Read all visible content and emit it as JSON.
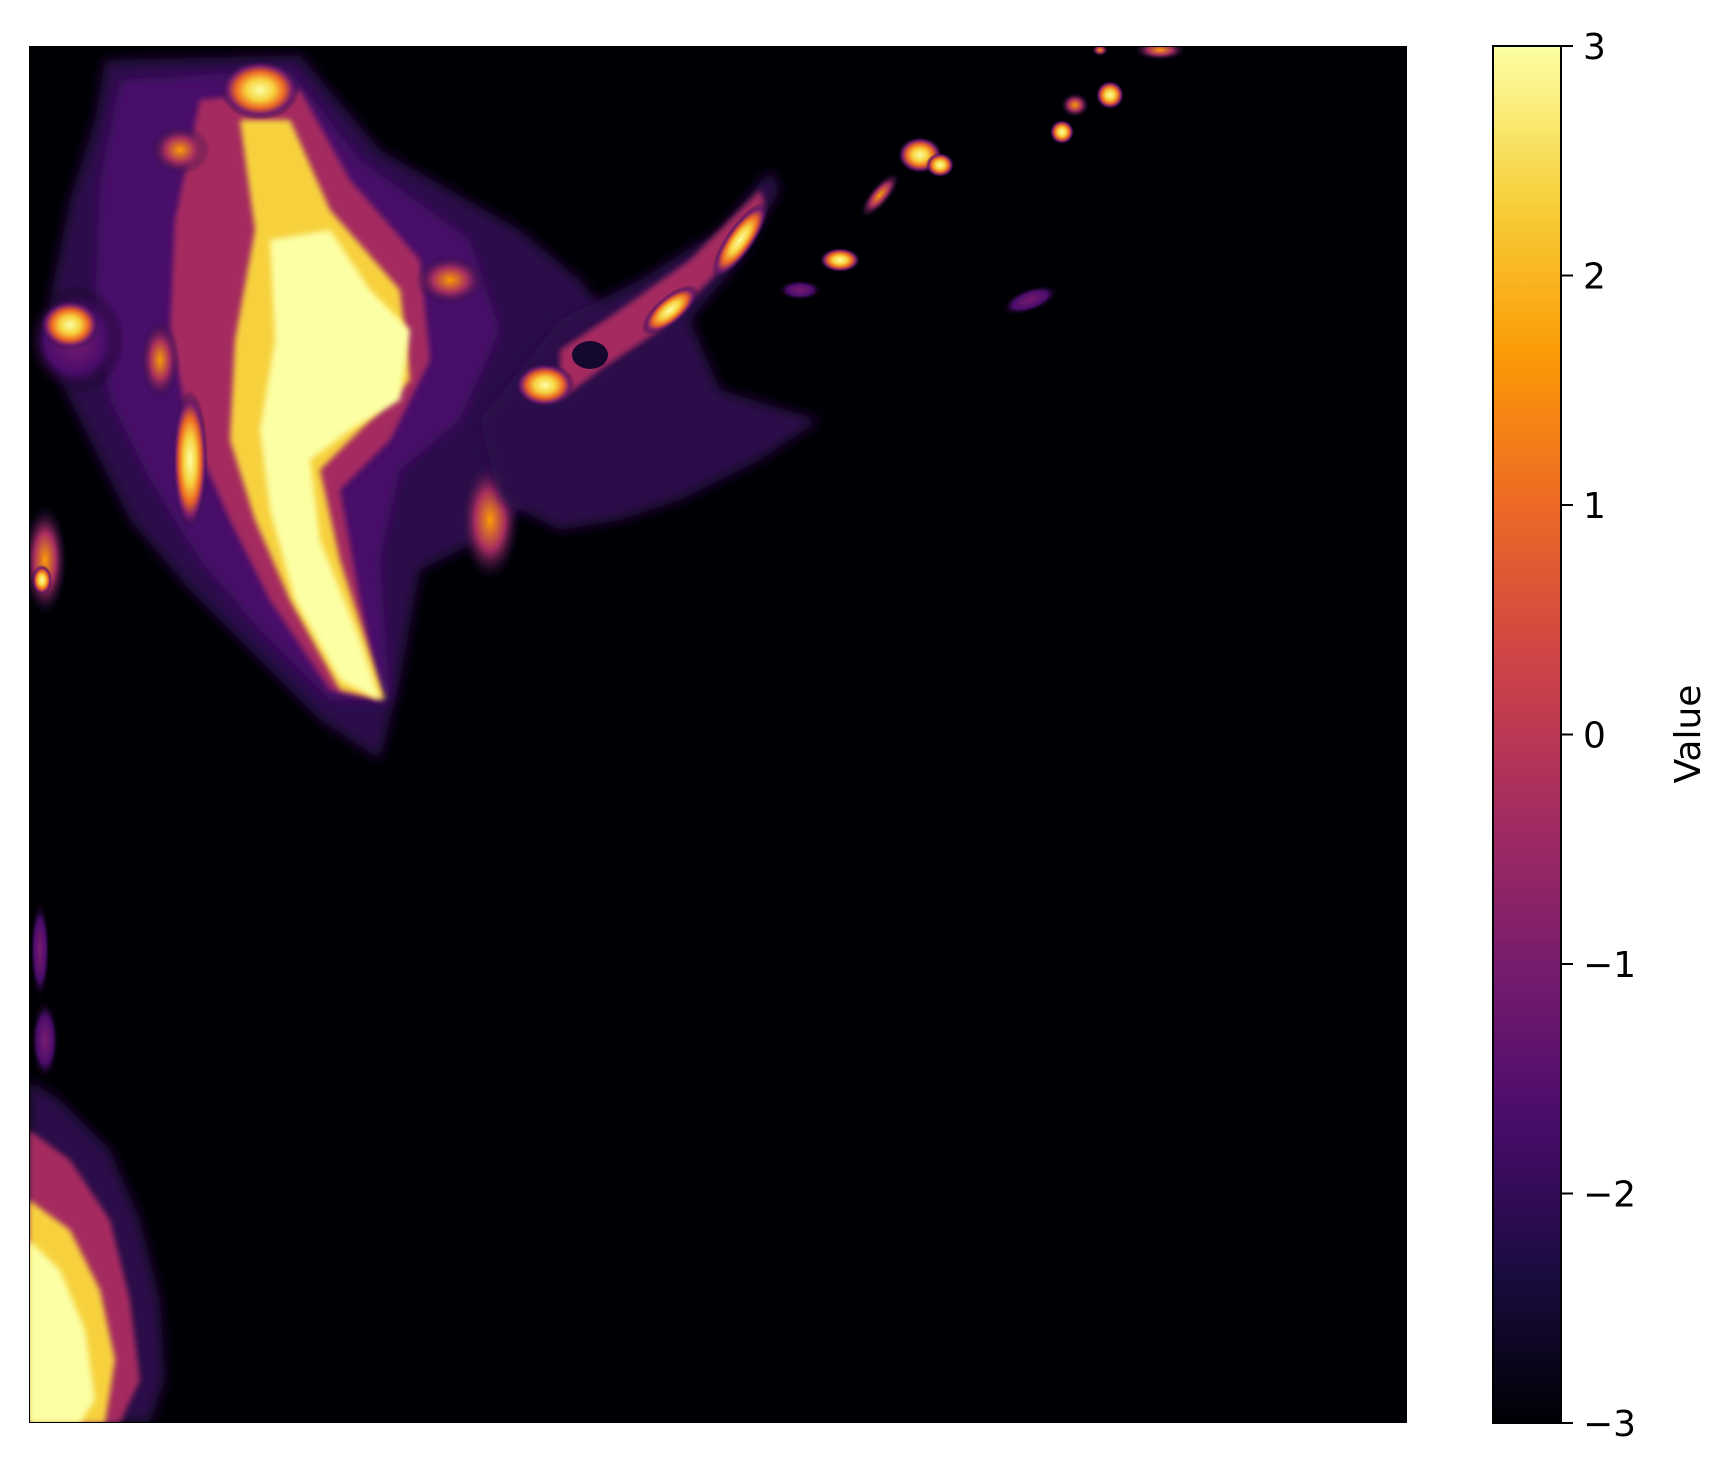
{
  "chart_data": {
    "type": "heatmap",
    "title": "",
    "xlabel": "",
    "ylabel": "",
    "x_ticks_visible": false,
    "y_ticks_visible": false,
    "colormap": "inferno",
    "colormap_stops": [
      "#000004",
      "#1b0c41",
      "#4a0c6b",
      "#781c6d",
      "#a52c60",
      "#cf4446",
      "#ed6925",
      "#fb9b06",
      "#f7d13d",
      "#fcffa4"
    ],
    "colorbar": {
      "label": "Value",
      "vmin": -3,
      "vmax": 3,
      "ticks": [
        -3,
        -2,
        -1,
        0,
        1,
        2,
        3
      ],
      "tick_labels": [
        "−3",
        "−2",
        "−1",
        "0",
        "1",
        "2",
        "3"
      ]
    },
    "background_value": -3
  }
}
